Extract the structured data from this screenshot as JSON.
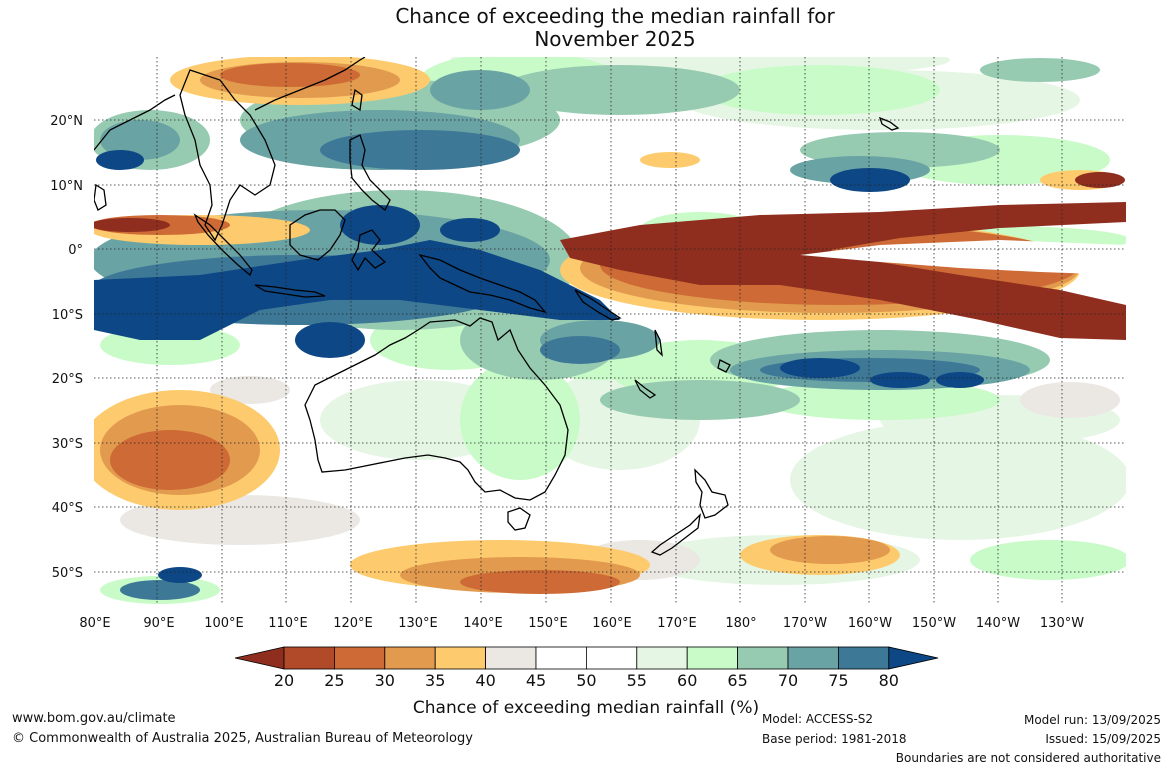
{
  "title": {
    "line1": "Chance of exceeding the median rainfall for",
    "line2": "November 2025"
  },
  "map": {
    "lon_labels": [
      "80°E",
      "90°E",
      "100°E",
      "110°E",
      "120°E",
      "130°E",
      "140°E",
      "150°E",
      "160°E",
      "170°E",
      "180°",
      "170°W",
      "160°W",
      "150°W",
      "140°W",
      "130°W"
    ],
    "lat_labels": [
      "20°N",
      "10°N",
      "0°",
      "10°S",
      "20°S",
      "30°S",
      "40°S",
      "50°S"
    ],
    "colors": {
      "c15": "#8f2e1e",
      "c20": "#b04a28",
      "c25": "#cd6a35",
      "c30": "#e29a4e",
      "c35": "#fdcb6e",
      "c40": "#ebe8e4",
      "c45": "#ffffff",
      "c55": "#e6f6e4",
      "c60": "#c8fbc8",
      "c65": "#97cbb1",
      "c70": "#6aa3a4",
      "c75": "#3e7897",
      "c80": "#0d4785",
      "ocean": "#ffffff",
      "coast": "#000000",
      "grid": "#222222"
    }
  },
  "colorbar": {
    "ticks": [
      "20",
      "25",
      "30",
      "35",
      "40",
      "45",
      "50",
      "55",
      "60",
      "65",
      "70",
      "75",
      "80"
    ],
    "label": "Chance of exceeding median rainfall (%)"
  },
  "footer": {
    "website": "www.bom.gov.au/climate",
    "copyright": "© Commonwealth of Australia 2025, Australian Bureau of Meteorology",
    "model": "Model: ACCESS-S2",
    "base_period": "Base period: 1981-2018",
    "model_run": "Model run: 13/09/2025",
    "issued": "Issued: 15/09/2025",
    "disclaimer": "Boundaries are not considered authoritative"
  }
}
